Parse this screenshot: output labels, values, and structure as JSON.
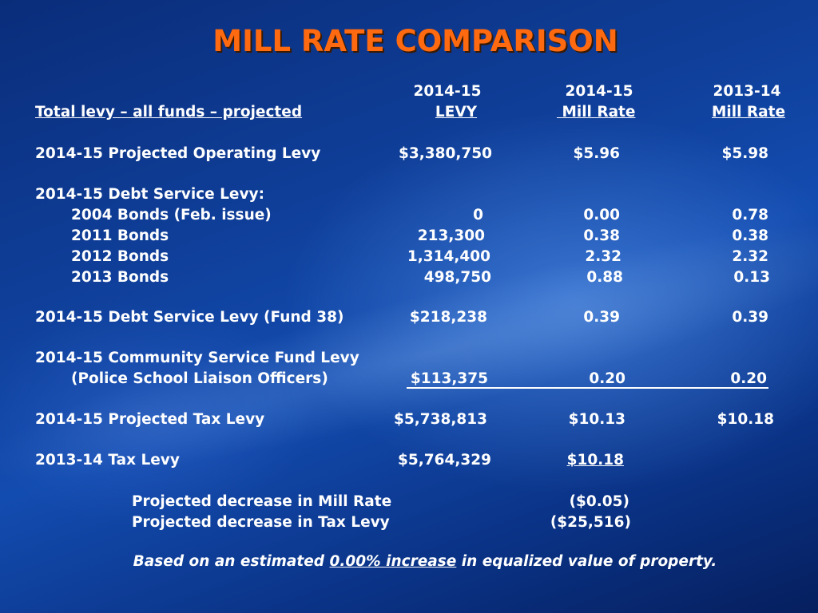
{
  "title": "MILL RATE COMPARISON",
  "header": {
    "col1_top": "2014-15",
    "col1_bottom": "LEVY",
    "col2_top": "2014-15",
    "col2_bottom": "Mill Rate",
    "col3_top": "2013-14",
    "col3_bottom": "Mill Rate",
    "row_label": "Total levy – all funds – projected"
  },
  "rows": {
    "operating": {
      "label": "2014-15 Projected Operating Levy",
      "levy": "$3,380,750",
      "rate_1415": "$5.96",
      "rate_1314": "$5.98"
    },
    "debt_heading": "2014-15 Debt Service Levy:",
    "bonds": [
      {
        "label": "2004 Bonds (Feb. issue)",
        "levy": "0",
        "rate_1415": "0.00",
        "rate_1314": "0.78"
      },
      {
        "label": "2011 Bonds",
        "levy": "213,300",
        "rate_1415": "0.38",
        "rate_1314": "0.38"
      },
      {
        "label": "2012 Bonds",
        "levy": "1,314,400",
        "rate_1415": "2.32",
        "rate_1314": "2.32"
      },
      {
        "label": "2013 Bonds",
        "levy": "498,750",
        "rate_1415": "0.88",
        "rate_1314": "0.13"
      }
    ],
    "fund38": {
      "label": "2014-15 Debt Service Levy (Fund 38)",
      "levy": "$218,238",
      "rate_1415": "0.39",
      "rate_1314": "0.39"
    },
    "community_heading": "2014-15 Community Service Fund Levy",
    "community": {
      "label": "(Police School Liaison Officers)",
      "levy": "$113,375",
      "rate_1415": "0.20",
      "rate_1314": "0.20"
    },
    "projected": {
      "label": "2014-15 Projected Tax Levy",
      "levy": "$5,738,813",
      "rate_1415": "$10.13",
      "rate_1314": "$10.18"
    },
    "prior": {
      "label": "2013-14 Tax Levy",
      "levy": "$5,764,329",
      "rate_1415": "$10.18"
    },
    "decrease_mill": {
      "label": "Projected decrease in Mill Rate",
      "value": "($0.05)"
    },
    "decrease_levy": {
      "label": "Projected decrease in Tax Levy",
      "value": "($25,516)"
    }
  },
  "footnote": {
    "before": "Based on an estimated ",
    "emph": "0.00% increase",
    "after": " in equalized value of property."
  }
}
